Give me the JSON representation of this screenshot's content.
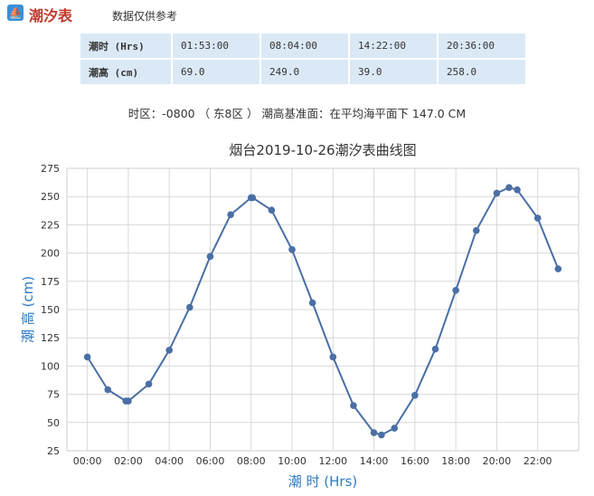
{
  "header": {
    "logo_icon": "sailboat-icon",
    "title": "潮汐表",
    "note": "数据仅供参考"
  },
  "table": {
    "time_label": "潮时 (Hrs)",
    "height_label": "潮高 (cm)",
    "times": [
      "01:53:00",
      "08:04:00",
      "14:22:00",
      "20:36:00"
    ],
    "heights": [
      "69.0",
      "249.0",
      "39.0",
      "258.0"
    ]
  },
  "info": "时区：-0800 （ 东8区 ） 潮高基准面：在平均海平面下 147.0 CM",
  "chart_data": {
    "type": "line",
    "title": "烟台2019-10-26潮汐表曲线图",
    "xlabel": "潮 时 (Hrs)",
    "ylabel": "潮 高 (cm)",
    "x_ticks": [
      "00:00",
      "02:00",
      "04:00",
      "06:00",
      "08:00",
      "10:00",
      "12:00",
      "14:00",
      "16:00",
      "18:00",
      "20:00",
      "22:00"
    ],
    "y_ticks": [
      25,
      50,
      75,
      100,
      125,
      150,
      175,
      200,
      225,
      250,
      275
    ],
    "xlim": [
      -1,
      24
    ],
    "ylim": [
      25,
      275
    ],
    "grid": true,
    "line_color": "#4a6fa5",
    "series": [
      {
        "x": [
          0,
          1,
          1.883,
          2,
          3,
          4,
          5,
          6,
          7,
          8,
          8.067,
          9,
          10,
          11,
          12,
          13,
          14,
          14.367,
          15,
          16,
          17,
          18,
          19,
          20,
          20.6,
          21,
          22,
          23
        ],
        "y": [
          108,
          79,
          69,
          69,
          84,
          114,
          152,
          197,
          234,
          249,
          249,
          238,
          203,
          156,
          108,
          65,
          41,
          39,
          45,
          74,
          115,
          167,
          220,
          253,
          258,
          256,
          231,
          186
        ]
      }
    ]
  }
}
